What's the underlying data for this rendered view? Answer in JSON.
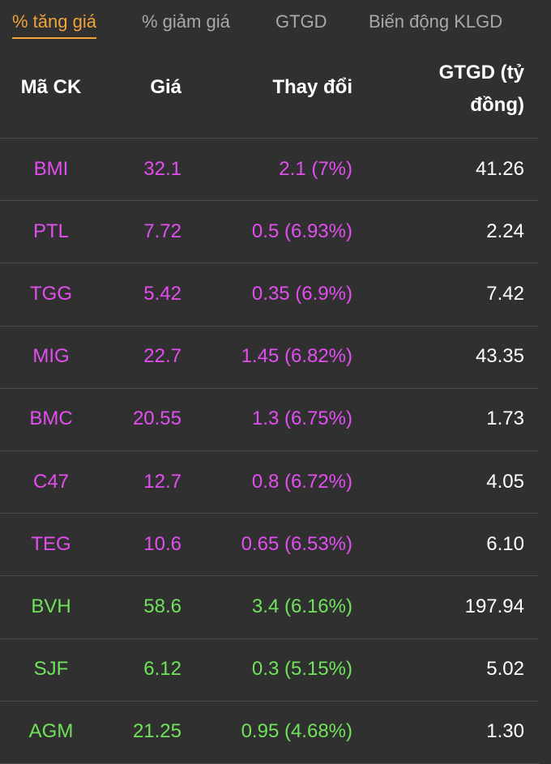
{
  "tabs": [
    "% tăng giá",
    "% giảm giá",
    "GTGD",
    "Biến động KLGD"
  ],
  "active_tab": 0,
  "table": {
    "header": [
      "Mã CK",
      "Giá",
      "Thay đổi",
      "GTGD (tỷ đồng)"
    ],
    "rows": [
      {
        "color": "#e34ef0",
        "cells": [
          "BMI",
          "32.1",
          "2.1 (7%)",
          "41.26"
        ]
      },
      {
        "color": "#e34ef0",
        "cells": [
          "PTL",
          "7.72",
          "0.5 (6.93%)",
          "2.24"
        ]
      },
      {
        "color": "#e34ef0",
        "cells": [
          "TGG",
          "5.42",
          "0.35 (6.9%)",
          "7.42"
        ]
      },
      {
        "color": "#e34ef0",
        "cells": [
          "MIG",
          "22.7",
          "1.45 (6.82%)",
          "43.35"
        ]
      },
      {
        "color": "#e34ef0",
        "cells": [
          "BMC",
          "20.55",
          "1.3 (6.75%)",
          "1.73"
        ]
      },
      {
        "color": "#e34ef0",
        "cells": [
          "C47",
          "12.7",
          "0.8 (6.72%)",
          "4.05"
        ]
      },
      {
        "color": "#e34ef0",
        "cells": [
          "TEG",
          "10.6",
          "0.65 (6.53%)",
          "6.10"
        ]
      },
      {
        "color": "#6fe35a",
        "cells": [
          "BVH",
          "58.6",
          "3.4 (6.16%)",
          "197.94"
        ]
      },
      {
        "color": "#6fe35a",
        "cells": [
          "SJF",
          "6.12",
          "0.3 (5.15%)",
          "5.02"
        ]
      },
      {
        "color": "#6fe35a",
        "cells": [
          "AGM",
          "21.25",
          "0.95 (4.68%)",
          "1.30"
        ]
      }
    ]
  }
}
